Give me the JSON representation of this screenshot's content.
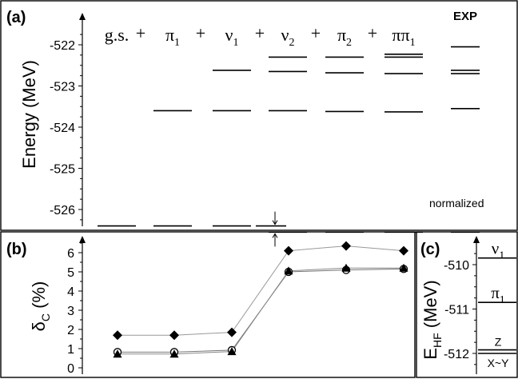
{
  "chart_data": [
    {
      "panel": "(a)",
      "type": "levels",
      "ylabel": "Energy (MeV)",
      "yticks": [
        -522,
        -523,
        -524,
        -525,
        -526
      ],
      "ylim": [
        -526.6,
        -521.7
      ],
      "columns": [
        {
          "label": "g.s.",
          "sub": "",
          "plus": "+",
          "levels": [
            -526.4
          ]
        },
        {
          "label": "π",
          "sub": "1",
          "plus": "+",
          "levels": [
            -523.6,
            -526.4
          ]
        },
        {
          "label": "ν",
          "sub": "1",
          "plus": "+",
          "levels": [
            -522.62,
            -523.6,
            -526.4
          ]
        },
        {
          "label": "ν",
          "sub": "2",
          "plus": "+",
          "levels": [
            -522.3,
            -522.65,
            -523.6,
            -526.55
          ]
        },
        {
          "label": "π",
          "sub": "2",
          "plus": "+",
          "levels": [
            -522.3,
            -522.68,
            -523.62,
            -526.55
          ]
        },
        {
          "label": "ππ",
          "sub": "1",
          "plus": "",
          "levels": [
            -522.23,
            -522.3,
            -522.7,
            -523.63,
            -526.55
          ]
        },
        {
          "label": "EXP",
          "sub": "",
          "plus": "",
          "levels": [
            -522.05,
            -522.62,
            -522.7,
            -523.55,
            -526.55
          ]
        }
      ],
      "shift_level": -526.4,
      "annotation": "normalized"
    },
    {
      "panel": "(b)",
      "type": "line",
      "ylabel": "δ",
      "ylabel_sub": "C",
      "ylabel_unit": " (%)",
      "yticks": [
        0,
        1,
        2,
        3,
        4,
        5,
        6
      ],
      "ylim": [
        -0.1,
        6.8
      ],
      "x": [
        1,
        2,
        3,
        4,
        5,
        6
      ],
      "series": [
        {
          "marker": "diamond",
          "values": [
            1.7,
            1.7,
            1.85,
            6.1,
            6.35,
            6.1
          ]
        },
        {
          "marker": "circle",
          "values": [
            0.82,
            0.82,
            0.92,
            5.0,
            5.1,
            5.15
          ]
        },
        {
          "marker": "triangle",
          "values": [
            0.72,
            0.72,
            0.85,
            5.05,
            5.2,
            5.2
          ]
        }
      ]
    },
    {
      "panel": "(c)",
      "type": "levels",
      "ylabel": "E",
      "ylabel_sub": "HF",
      "ylabel_unit": " (MeV)",
      "yticks": [
        -510,
        -511,
        -512
      ],
      "ylim": [
        -512.35,
        -509.65
      ],
      "levels": [
        {
          "value": -509.85,
          "label": "ν",
          "sub": "1"
        },
        {
          "value": -510.85,
          "label": "π",
          "sub": "1"
        },
        {
          "value": -511.92,
          "label": "Z",
          "sub": ""
        },
        {
          "value": -512.0,
          "label": "X~Y",
          "sub": ""
        }
      ]
    }
  ]
}
